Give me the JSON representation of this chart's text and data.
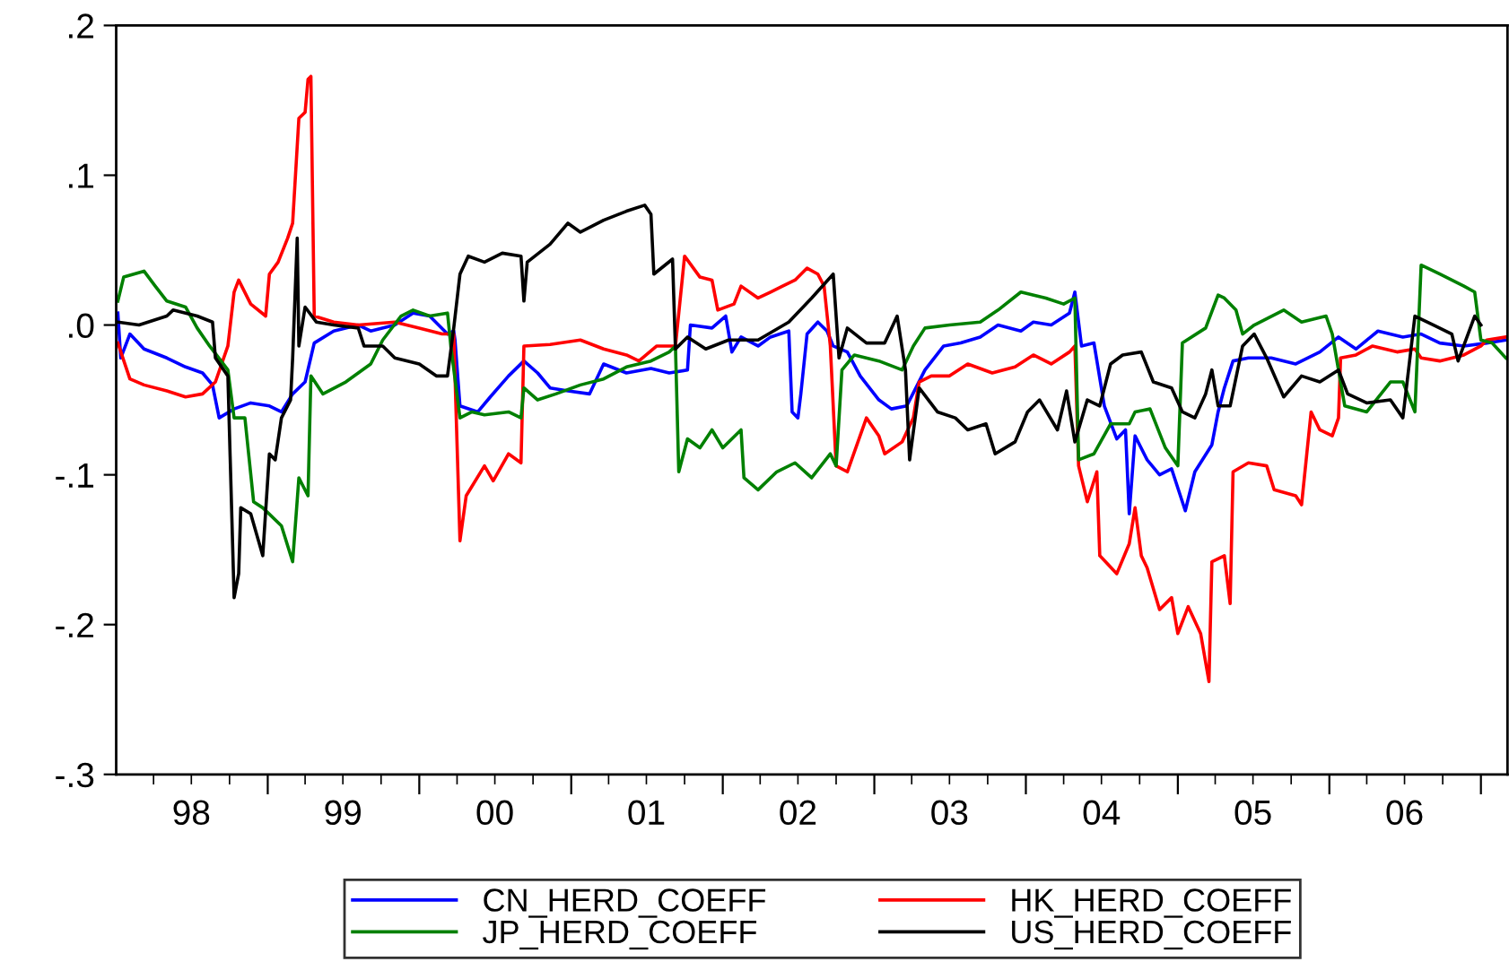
{
  "chart_data": {
    "type": "line",
    "xlim": [
      "1998-01-01",
      "2007-03-06"
    ],
    "ylim": [
      -0.3,
      0.2
    ],
    "yticks": [
      {
        "value": 0.2,
        "label": ".2"
      },
      {
        "value": 0.1,
        "label": ".1"
      },
      {
        "value": 0,
        "label": ".0"
      },
      {
        "value": -0.1,
        "label": "-.1"
      },
      {
        "value": -0.2,
        "label": "-.2"
      },
      {
        "value": -0.3,
        "label": "-.3"
      }
    ],
    "xticks": [
      {
        "value": "1998-04-01",
        "label": null
      },
      {
        "value": "1998-07-01",
        "label": "98"
      },
      {
        "value": "1998-10-01",
        "label": null
      },
      {
        "value": "1999-01-01",
        "label": null
      },
      {
        "value": "1999-04-01",
        "label": null
      },
      {
        "value": "1999-07-01",
        "label": "99"
      },
      {
        "value": "1999-10-01",
        "label": null
      },
      {
        "value": "2000-01-01",
        "label": null
      },
      {
        "value": "2000-04-01",
        "label": null
      },
      {
        "value": "2000-07-01",
        "label": "00"
      },
      {
        "value": "2000-10-01",
        "label": null
      },
      {
        "value": "2001-01-01",
        "label": null
      },
      {
        "value": "2001-04-01",
        "label": null
      },
      {
        "value": "2001-07-01",
        "label": "01"
      },
      {
        "value": "2001-10-01",
        "label": null
      },
      {
        "value": "2002-01-01",
        "label": null
      },
      {
        "value": "2002-04-01",
        "label": null
      },
      {
        "value": "2002-07-01",
        "label": "02"
      },
      {
        "value": "2002-10-01",
        "label": null
      },
      {
        "value": "2003-01-01",
        "label": null
      },
      {
        "value": "2003-04-01",
        "label": null
      },
      {
        "value": "2003-07-01",
        "label": "03"
      },
      {
        "value": "2003-10-01",
        "label": null
      },
      {
        "value": "2004-01-01",
        "label": null
      },
      {
        "value": "2004-04-01",
        "label": null
      },
      {
        "value": "2004-07-01",
        "label": "04"
      },
      {
        "value": "2004-10-01",
        "label": null
      },
      {
        "value": "2005-01-01",
        "label": null
      },
      {
        "value": "2005-04-01",
        "label": null
      },
      {
        "value": "2005-07-01",
        "label": "05"
      },
      {
        "value": "2005-10-01",
        "label": null
      },
      {
        "value": "2006-01-01",
        "label": null
      },
      {
        "value": "2006-04-01",
        "label": null
      },
      {
        "value": "2006-07-01",
        "label": "06"
      },
      {
        "value": "2006-10-01",
        "label": null
      },
      {
        "value": "2007-01-01",
        "label": null
      }
    ],
    "grid": false,
    "legend": "bottom",
    "marker": "none",
    "line_style": "solid",
    "series": [
      {
        "name": "CN_HERD_COEFF",
        "color": "#0000ff",
        "x": [
          "1998-01-05",
          "1998-01-12",
          "1998-02-03",
          "1998-03-09",
          "1998-05-03",
          "1998-06-17",
          "1998-07-28",
          "1998-08-21",
          "1998-09-06",
          "1998-10-12",
          "1998-11-21",
          "1999-01-05",
          "1999-02-03",
          "1999-03-02",
          "1999-04-01",
          "1999-04-23",
          "1999-06-09",
          "1999-08-07",
          "1999-09-06",
          "1999-11-03",
          "1999-12-17",
          "2000-01-26",
          "2000-03-09",
          "2000-03-24",
          "2000-03-27",
          "2000-04-08",
          "2000-05-21",
          "2000-06-20",
          "2000-08-03",
          "2000-09-09",
          "2000-10-12",
          "2000-11-11",
          "2000-12-24",
          "2001-02-14",
          "2001-03-20",
          "2001-05-14",
          "2001-07-12",
          "2001-08-25",
          "2001-10-08",
          "2001-10-15",
          "2001-12-06",
          "2002-01-08",
          "2002-01-23",
          "2002-02-14",
          "2002-03-27",
          "2002-04-26",
          "2002-06-09",
          "2002-06-17",
          "2002-07-01",
          "2002-07-08",
          "2002-07-23",
          "2002-08-18",
          "2002-09-09",
          "2002-09-24",
          "2002-10-28",
          "2002-11-28",
          "2003-01-12",
          "2003-02-11",
          "2003-03-20",
          "2003-05-03",
          "2003-06-17",
          "2003-07-28",
          "2003-09-13",
          "2003-10-26",
          "2003-12-20",
          "2004-01-19",
          "2004-03-02",
          "2004-04-15",
          "2004-04-28",
          "2004-05-14",
          "2004-06-13",
          "2004-07-08",
          "2004-08-07",
          "2004-08-28",
          "2004-09-06",
          "2004-09-20",
          "2004-10-19",
          "2004-11-18",
          "2004-12-17",
          "2005-01-19",
          "2005-02-11",
          "2005-03-24",
          "2005-04-08",
          "2005-04-23",
          "2005-05-14",
          "2005-06-20",
          "2005-08-14",
          "2005-10-12",
          "2005-12-09",
          "2006-01-23",
          "2006-03-06",
          "2006-04-28",
          "2006-06-27",
          "2006-08-10",
          "2006-09-24",
          "2006-11-21",
          "2007-01-15",
          "2007-03-02"
        ],
        "values": [
          0.008,
          -0.022,
          -0.006,
          -0.016,
          -0.022,
          -0.028,
          -0.032,
          -0.04,
          -0.062,
          -0.056,
          -0.052,
          -0.054,
          -0.058,
          -0.046,
          -0.038,
          -0.012,
          -0.004,
          0,
          -0.004,
          0,
          0.008,
          0.006,
          -0.006,
          -0.004,
          -0.01,
          -0.054,
          -0.058,
          -0.048,
          -0.034,
          -0.024,
          -0.032,
          -0.042,
          -0.044,
          -0.046,
          -0.026,
          -0.032,
          -0.029,
          -0.032,
          -0.03,
          0,
          -0.002,
          0.006,
          -0.018,
          -0.008,
          -0.014,
          -0.008,
          -0.004,
          -0.058,
          -0.062,
          -0.046,
          -0.006,
          0.002,
          -0.004,
          -0.014,
          -0.018,
          -0.034,
          -0.05,
          -0.056,
          -0.054,
          -0.03,
          -0.014,
          -0.012,
          -0.008,
          0,
          -0.004,
          0.002,
          0,
          0.008,
          0.022,
          -0.014,
          -0.012,
          -0.054,
          -0.076,
          -0.07,
          -0.126,
          -0.074,
          -0.09,
          -0.1,
          -0.096,
          -0.124,
          -0.098,
          -0.08,
          -0.058,
          -0.042,
          -0.024,
          -0.022,
          -0.022,
          -0.026,
          -0.018,
          -0.008,
          -0.016,
          -0.004,
          -0.008,
          -0.006,
          -0.012,
          -0.014,
          -0.012,
          -0.01
        ]
      },
      {
        "name": "HK_HERD_COEFF",
        "color": "#ff0000",
        "x": [
          "1998-01-05",
          "1998-02-03",
          "1998-03-09",
          "1998-05-03",
          "1998-06-17",
          "1998-07-28",
          "1998-08-28",
          "1998-09-27",
          "1998-10-12",
          "1998-10-23",
          "1998-11-21",
          "1998-12-27",
          "1999-01-05",
          "1999-01-26",
          "1999-02-18",
          "1999-03-02",
          "1999-03-17",
          "1999-04-01",
          "1999-04-08",
          "1999-04-15",
          "1999-04-23",
          "1999-06-09",
          "1999-08-07",
          "1999-11-03",
          "2000-01-01",
          "2000-02-25",
          "2000-03-24",
          "2000-04-08",
          "2000-04-23",
          "2000-06-06",
          "2000-06-27",
          "2000-08-03",
          "2000-09-02",
          "2000-09-09",
          "2000-11-11",
          "2001-01-23",
          "2001-03-20",
          "2001-05-14",
          "2001-06-13",
          "2001-07-26",
          "2001-09-09",
          "2001-10-01",
          "2001-11-07",
          "2001-12-06",
          "2001-12-20",
          "2002-01-28",
          "2002-02-14",
          "2002-03-27",
          "2002-04-26",
          "2002-05-25",
          "2002-06-24",
          "2002-07-23",
          "2002-08-18",
          "2002-09-02",
          "2002-09-17",
          "2002-10-01",
          "2002-10-28",
          "2002-12-13",
          "2003-01-12",
          "2003-01-26",
          "2003-03-09",
          "2003-04-05",
          "2003-04-19",
          "2003-05-18",
          "2003-07-01",
          "2003-08-14",
          "2003-10-12",
          "2003-12-06",
          "2004-01-19",
          "2004-03-02",
          "2004-04-15",
          "2004-04-28",
          "2004-05-07",
          "2004-05-28",
          "2004-06-20",
          "2004-06-27",
          "2004-08-07",
          "2004-09-06",
          "2004-09-20",
          "2004-10-05",
          "2004-10-19",
          "2004-11-18",
          "2004-12-17",
          "2005-01-01",
          "2005-01-26",
          "2005-02-25",
          "2005-03-17",
          "2005-03-24",
          "2005-04-23",
          "2005-05-07",
          "2005-05-14",
          "2005-06-20",
          "2005-08-03",
          "2005-08-21",
          "2005-10-12",
          "2005-10-26",
          "2005-11-18",
          "2005-12-09",
          "2006-01-08",
          "2006-01-23",
          "2006-01-28",
          "2006-03-06",
          "2006-04-15",
          "2006-06-13",
          "2006-07-26",
          "2006-08-10",
          "2006-09-24",
          "2006-11-21",
          "2007-01-01",
          "2007-01-15",
          "2007-03-02"
        ],
        "values": [
          -0.012,
          -0.036,
          -0.04,
          -0.044,
          -0.048,
          -0.046,
          -0.038,
          -0.014,
          0.022,
          0.03,
          0.014,
          0.006,
          0.034,
          0.042,
          0.058,
          0.068,
          0.138,
          0.142,
          0.164,
          0.166,
          0.006,
          0.002,
          0,
          0.002,
          -0.002,
          -0.006,
          -0.006,
          -0.144,
          -0.114,
          -0.094,
          -0.104,
          -0.086,
          -0.092,
          -0.014,
          -0.013,
          -0.01,
          -0.016,
          -0.02,
          -0.024,
          -0.014,
          -0.014,
          0.046,
          0.032,
          0.03,
          0.01,
          0.014,
          0.026,
          0.018,
          0.022,
          0.026,
          0.03,
          0.038,
          0.034,
          0.026,
          -0.014,
          -0.094,
          -0.098,
          -0.062,
          -0.074,
          -0.086,
          -0.078,
          -0.062,
          -0.038,
          -0.034,
          -0.034,
          -0.026,
          -0.032,
          -0.028,
          -0.02,
          -0.026,
          -0.018,
          -0.014,
          -0.094,
          -0.118,
          -0.098,
          -0.154,
          -0.166,
          -0.146,
          -0.122,
          -0.154,
          -0.162,
          -0.19,
          -0.182,
          -0.206,
          -0.188,
          -0.206,
          -0.238,
          -0.158,
          -0.154,
          -0.186,
          -0.098,
          -0.092,
          -0.094,
          -0.11,
          -0.114,
          -0.12,
          -0.058,
          -0.07,
          -0.074,
          -0.062,
          -0.022,
          -0.02,
          -0.014,
          -0.018,
          -0.016,
          -0.022,
          -0.024,
          -0.02,
          -0.014,
          -0.01,
          -0.008
        ]
      },
      {
        "name": "JP_HERD_COEFF",
        "color": "#008000",
        "x": [
          "1998-01-05",
          "1998-01-19",
          "1998-03-09",
          "1998-04-05",
          "1998-05-03",
          "1998-06-17",
          "1998-07-15",
          "1998-08-14",
          "1998-09-27",
          "1998-10-12",
          "1998-11-07",
          "1998-11-28",
          "1998-12-20",
          "1999-02-03",
          "1999-03-02",
          "1999-03-17",
          "1999-04-08",
          "1999-04-15",
          "1999-05-14",
          "1999-07-08",
          "1999-09-06",
          "1999-10-05",
          "1999-11-18",
          "1999-12-17",
          "2000-01-26",
          "2000-03-09",
          "2000-03-17",
          "2000-04-08",
          "2000-05-07",
          "2000-06-06",
          "2000-08-03",
          "2000-09-02",
          "2000-09-09",
          "2000-10-12",
          "2000-11-25",
          "2001-01-23",
          "2001-03-20",
          "2001-05-14",
          "2001-07-12",
          "2001-08-25",
          "2001-09-09",
          "2001-09-17",
          "2001-10-08",
          "2001-11-07",
          "2001-12-06",
          "2002-01-01",
          "2002-02-14",
          "2002-02-21",
          "2002-03-27",
          "2002-05-11",
          "2002-06-24",
          "2002-08-03",
          "2002-09-17",
          "2002-10-01",
          "2002-10-15",
          "2002-11-14",
          "2003-01-12",
          "2003-03-09",
          "2003-04-05",
          "2003-05-03",
          "2003-07-01",
          "2003-09-13",
          "2003-10-26",
          "2003-12-20",
          "2004-02-18",
          "2004-04-01",
          "2004-04-28",
          "2004-05-07",
          "2004-06-13",
          "2004-07-23",
          "2004-09-06",
          "2004-09-20",
          "2004-10-26",
          "2004-12-02",
          "2005-01-01",
          "2005-01-12",
          "2005-03-09",
          "2005-04-08",
          "2005-04-23",
          "2005-05-21",
          "2005-06-06",
          "2005-07-04",
          "2005-09-13",
          "2005-10-26",
          "2005-12-24",
          "2006-01-08",
          "2006-02-07",
          "2006-04-01",
          "2006-05-28",
          "2006-06-27",
          "2006-07-26",
          "2006-08-10",
          "2006-09-24",
          "2006-11-21",
          "2006-12-17",
          "2007-01-01",
          "2007-01-28",
          "2007-03-02"
        ],
        "values": [
          0.016,
          0.032,
          0.036,
          0.026,
          0.016,
          0.012,
          -0.002,
          -0.014,
          -0.03,
          -0.062,
          -0.062,
          -0.118,
          -0.122,
          -0.134,
          -0.158,
          -0.102,
          -0.114,
          -0.034,
          -0.046,
          -0.038,
          -0.026,
          -0.01,
          0.006,
          0.01,
          0.006,
          0.008,
          -0.014,
          -0.062,
          -0.058,
          -0.06,
          -0.058,
          -0.062,
          -0.042,
          -0.05,
          -0.046,
          -0.04,
          -0.036,
          -0.028,
          -0.024,
          -0.018,
          -0.014,
          -0.098,
          -0.076,
          -0.082,
          -0.07,
          -0.082,
          -0.07,
          -0.102,
          -0.11,
          -0.098,
          -0.092,
          -0.102,
          -0.086,
          -0.094,
          -0.03,
          -0.02,
          -0.024,
          -0.03,
          -0.014,
          -0.002,
          0,
          0.002,
          0.01,
          0.022,
          0.018,
          0.014,
          0.018,
          -0.09,
          -0.086,
          -0.066,
          -0.066,
          -0.058,
          -0.056,
          -0.082,
          -0.094,
          -0.012,
          -0.002,
          0.02,
          0.018,
          0.01,
          -0.006,
          0,
          0.01,
          0.002,
          0.006,
          -0.006,
          -0.054,
          -0.058,
          -0.038,
          -0.038,
          -0.058,
          0.04,
          0.034,
          0.026,
          0.022,
          -0.01,
          -0.012,
          -0.022
        ]
      },
      {
        "name": "US_HERD_COEFF",
        "color": "#000000",
        "x": [
          "1998-01-05",
          "1998-02-25",
          "1998-05-03",
          "1998-05-18",
          "1998-07-15",
          "1998-08-21",
          "1998-08-28",
          "1998-09-27",
          "1998-10-12",
          "1998-10-23",
          "1998-10-28",
          "1998-11-21",
          "1998-12-20",
          "1999-01-05",
          "1999-01-19",
          "1999-02-03",
          "1999-02-25",
          "1999-03-02",
          "1999-03-13",
          "1999-03-17",
          "1999-04-01",
          "1999-04-28",
          "1999-06-09",
          "1999-08-07",
          "1999-08-21",
          "1999-10-05",
          "1999-11-03",
          "2000-01-01",
          "2000-02-11",
          "2000-03-09",
          "2000-03-24",
          "2000-04-08",
          "2000-04-28",
          "2000-06-06",
          "2000-07-19",
          "2000-09-02",
          "2000-09-09",
          "2000-09-17",
          "2000-11-11",
          "2000-12-24",
          "2001-01-23",
          "2001-03-20",
          "2001-05-14",
          "2001-06-27",
          "2001-07-12",
          "2001-07-19",
          "2001-09-02",
          "2001-09-09",
          "2001-10-08",
          "2001-11-21",
          "2002-01-15",
          "2002-03-27",
          "2002-06-09",
          "2002-08-03",
          "2002-09-24",
          "2002-10-08",
          "2002-10-28",
          "2002-12-13",
          "2003-01-26",
          "2003-02-25",
          "2003-03-17",
          "2003-03-27",
          "2003-04-19",
          "2003-06-02",
          "2003-07-15",
          "2003-08-14",
          "2003-09-27",
          "2003-10-19",
          "2003-12-06",
          "2004-01-05",
          "2004-02-03",
          "2004-03-17",
          "2004-04-08",
          "2004-04-28",
          "2004-05-28",
          "2004-06-27",
          "2004-07-23",
          "2004-08-21",
          "2004-10-05",
          "2004-11-03",
          "2004-12-17",
          "2005-01-12",
          "2005-02-11",
          "2005-03-09",
          "2005-03-24",
          "2005-04-08",
          "2005-05-07",
          "2005-06-06",
          "2005-07-04",
          "2005-08-03",
          "2005-09-13",
          "2005-10-26",
          "2005-12-09",
          "2006-01-23",
          "2006-02-14",
          "2006-04-01",
          "2006-05-28",
          "2006-06-27",
          "2006-07-26",
          "2006-09-09",
          "2006-10-23",
          "2006-11-07",
          "2006-12-17",
          "2007-01-01"
        ],
        "values": [
          0.002,
          0,
          0.006,
          0.01,
          0.006,
          0.002,
          -0.022,
          -0.034,
          -0.182,
          -0.166,
          -0.122,
          -0.126,
          -0.154,
          -0.086,
          -0.09,
          -0.062,
          -0.05,
          -0.022,
          0.058,
          -0.014,
          0.012,
          0.002,
          0,
          -0.002,
          -0.014,
          -0.014,
          -0.022,
          -0.026,
          -0.034,
          -0.034,
          -0.002,
          0.034,
          0.046,
          0.042,
          0.048,
          0.046,
          0.016,
          0.042,
          0.054,
          0.068,
          0.062,
          0.07,
          0.076,
          0.08,
          0.074,
          0.034,
          0.044,
          -0.016,
          -0.008,
          -0.016,
          -0.01,
          -0.01,
          0.002,
          0.018,
          0.034,
          -0.022,
          -0.002,
          -0.012,
          -0.012,
          0.006,
          -0.03,
          -0.09,
          -0.042,
          -0.058,
          -0.062,
          -0.07,
          -0.066,
          -0.086,
          -0.078,
          -0.058,
          -0.05,
          -0.07,
          -0.044,
          -0.078,
          -0.05,
          -0.054,
          -0.026,
          -0.02,
          -0.018,
          -0.038,
          -0.042,
          -0.058,
          -0.062,
          -0.046,
          -0.03,
          -0.054,
          -0.054,
          -0.014,
          -0.006,
          -0.022,
          -0.048,
          -0.034,
          -0.038,
          -0.03,
          -0.046,
          -0.052,
          -0.05,
          -0.062,
          0.006,
          0,
          -0.006,
          -0.024,
          0.006,
          0
        ]
      }
    ]
  }
}
